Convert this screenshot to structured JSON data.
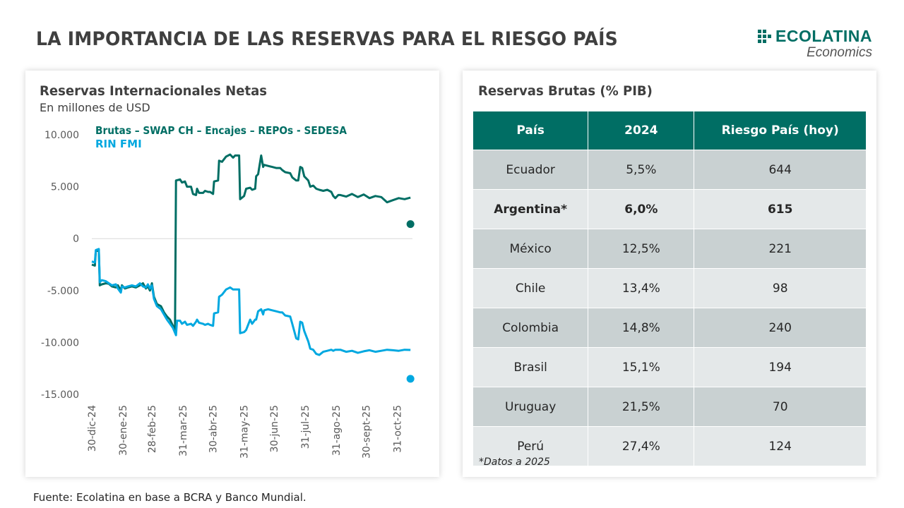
{
  "header": {
    "title": "LA IMPORTANCIA DE LAS RESERVAS PARA EL RIESGO PAÍS",
    "logo_name": "ECOLATINA",
    "logo_sub": "Economics"
  },
  "colors": {
    "brand": "#006e64",
    "series_brutas": "#006e64",
    "series_rin": "#00a8e0",
    "table_header": "#006e64",
    "row_dark": "#c9d1d2",
    "row_light": "#e4e8e9"
  },
  "chart_data": {
    "type": "line",
    "title": "Reservas Internacionales Netas",
    "subtitle": "En millones de USD",
    "xlabel": "",
    "ylabel": "",
    "ylim": [
      -15000,
      10000
    ],
    "yticks": [
      10000,
      5000,
      0,
      -5000,
      -10000,
      -15000
    ],
    "ytick_labels": [
      "10.000",
      "5.000",
      "0",
      "-5.000",
      "-10.000",
      "-15.000"
    ],
    "xticks": [
      "30-dic-24",
      "30-ene-25",
      "28-feb-25",
      "31-mar-25",
      "30-abr-25",
      "31-may-25",
      "30-jun-25",
      "31-jul-25",
      "31-ago-25",
      "30-sept-25",
      "31-oct-25"
    ],
    "xtick_days": [
      0,
      31,
      60,
      91,
      121,
      152,
      182,
      213,
      244,
      274,
      305
    ],
    "x_range_days": [
      0,
      320
    ],
    "zero_line": true,
    "grid": false,
    "legend_position": "top-left",
    "series": [
      {
        "name": "Brutas – SWAP CH – Encajes – REPOs - SEDESA",
        "color_key": "series_brutas",
        "points": [
          [
            0,
            -2500
          ],
          [
            3,
            -2600
          ],
          [
            4,
            -1200
          ],
          [
            7,
            -1100
          ],
          [
            8,
            -4500
          ],
          [
            10,
            -4400
          ],
          [
            14,
            -4300
          ],
          [
            17,
            -4350
          ],
          [
            20,
            -4600
          ],
          [
            24,
            -4700
          ],
          [
            26,
            -4500
          ],
          [
            29,
            -5000
          ],
          [
            30,
            -4500
          ],
          [
            33,
            -4800
          ],
          [
            36,
            -4700
          ],
          [
            40,
            -4600
          ],
          [
            44,
            -4700
          ],
          [
            48,
            -4500
          ],
          [
            51,
            -4300
          ],
          [
            54,
            -4800
          ],
          [
            56,
            -4600
          ],
          [
            58,
            -5000
          ],
          [
            60,
            -4300
          ],
          [
            62,
            -5600
          ],
          [
            65,
            -6300
          ],
          [
            69,
            -6500
          ],
          [
            72,
            -7100
          ],
          [
            75,
            -7500
          ],
          [
            78,
            -7800
          ],
          [
            81,
            -8400
          ],
          [
            83,
            -8900
          ],
          [
            84,
            5600
          ],
          [
            88,
            5700
          ],
          [
            90,
            5400
          ],
          [
            93,
            5500
          ],
          [
            95,
            5000
          ],
          [
            99,
            5000
          ],
          [
            101,
            4300
          ],
          [
            104,
            4200
          ],
          [
            105,
            4800
          ],
          [
            107,
            4400
          ],
          [
            111,
            4400
          ],
          [
            113,
            4600
          ],
          [
            116,
            4500
          ],
          [
            118,
            4500
          ],
          [
            121,
            4300
          ],
          [
            122,
            5500
          ],
          [
            126,
            5600
          ],
          [
            127,
            7500
          ],
          [
            130,
            7400
          ],
          [
            134,
            7900
          ],
          [
            138,
            8100
          ],
          [
            141,
            7800
          ],
          [
            143,
            8000
          ],
          [
            147,
            8000
          ],
          [
            148,
            3800
          ],
          [
            152,
            4100
          ],
          [
            154,
            4800
          ],
          [
            158,
            4900
          ],
          [
            160,
            4700
          ],
          [
            163,
            4800
          ],
          [
            164,
            6000
          ],
          [
            166,
            6200
          ],
          [
            169,
            8000
          ],
          [
            171,
            6900
          ],
          [
            172,
            7100
          ],
          [
            176,
            7000
          ],
          [
            180,
            6900
          ],
          [
            184,
            6800
          ],
          [
            188,
            6800
          ],
          [
            190,
            6600
          ],
          [
            193,
            6400
          ],
          [
            198,
            6300
          ],
          [
            200,
            5900
          ],
          [
            204,
            5600
          ],
          [
            206,
            5600
          ],
          [
            208,
            6900
          ],
          [
            210,
            6800
          ],
          [
            212,
            6000
          ],
          [
            216,
            5600
          ],
          [
            218,
            5000
          ],
          [
            221,
            5100
          ],
          [
            224,
            4800
          ],
          [
            227,
            4700
          ],
          [
            231,
            4600
          ],
          [
            235,
            4700
          ],
          [
            239,
            4500
          ],
          [
            241,
            4100
          ],
          [
            243,
            3900
          ],
          [
            246,
            4200
          ],
          [
            248,
            4200
          ],
          [
            300,
            4200
          ]
        ],
        "end_marker": [
          318,
          1400
        ]
      },
      {
        "name": "RIN FMI",
        "color_key": "series_rin",
        "points": [
          [
            0,
            -2200
          ],
          [
            3,
            -2300
          ],
          [
            4,
            -1100
          ],
          [
            7,
            -1000
          ],
          [
            8,
            -4200
          ],
          [
            10,
            -4000
          ],
          [
            14,
            -4100
          ],
          [
            17,
            -4300
          ],
          [
            20,
            -4500
          ],
          [
            24,
            -4400
          ],
          [
            26,
            -4800
          ],
          [
            29,
            -5200
          ],
          [
            30,
            -4600
          ],
          [
            33,
            -4700
          ],
          [
            36,
            -4600
          ],
          [
            40,
            -4500
          ],
          [
            44,
            -4600
          ],
          [
            48,
            -4300
          ],
          [
            51,
            -4600
          ],
          [
            54,
            -4700
          ],
          [
            56,
            -4400
          ],
          [
            58,
            -4800
          ],
          [
            60,
            -4500
          ],
          [
            62,
            -5800
          ],
          [
            65,
            -6500
          ],
          [
            69,
            -6800
          ],
          [
            72,
            -7300
          ],
          [
            75,
            -7800
          ],
          [
            78,
            -8200
          ],
          [
            81,
            -8600
          ],
          [
            84,
            -9300
          ],
          [
            85,
            -7900
          ],
          [
            88,
            -7900
          ],
          [
            90,
            -8200
          ],
          [
            93,
            -8000
          ],
          [
            95,
            -8300
          ],
          [
            99,
            -8200
          ],
          [
            101,
            -8400
          ],
          [
            104,
            -8000
          ],
          [
            105,
            -7800
          ],
          [
            107,
            -8100
          ],
          [
            111,
            -8200
          ],
          [
            113,
            -8300
          ],
          [
            116,
            -8200
          ],
          [
            118,
            -8300
          ],
          [
            121,
            -8400
          ],
          [
            122,
            -7200
          ],
          [
            126,
            -7100
          ],
          [
            127,
            -5600
          ],
          [
            130,
            -5400
          ],
          [
            134,
            -4900
          ],
          [
            138,
            -4700
          ],
          [
            141,
            -4900
          ],
          [
            143,
            -4900
          ],
          [
            147,
            -4900
          ],
          [
            148,
            -9100
          ],
          [
            152,
            -9000
          ],
          [
            154,
            -8800
          ],
          [
            158,
            -7800
          ],
          [
            160,
            -8200
          ],
          [
            163,
            -7800
          ],
          [
            164,
            -7800
          ],
          [
            166,
            -7000
          ],
          [
            169,
            -6800
          ],
          [
            171,
            -7300
          ],
          [
            172,
            -6900
          ],
          [
            176,
            -6800
          ],
          [
            180,
            -6900
          ],
          [
            184,
            -7000
          ],
          [
            188,
            -7100
          ],
          [
            190,
            -7100
          ],
          [
            193,
            -7400
          ],
          [
            198,
            -7500
          ],
          [
            200,
            -8200
          ],
          [
            204,
            -9600
          ],
          [
            206,
            -9700
          ],
          [
            208,
            -8000
          ],
          [
            210,
            -8100
          ],
          [
            212,
            -8900
          ],
          [
            216,
            -9900
          ],
          [
            218,
            -10600
          ],
          [
            221,
            -10700
          ],
          [
            224,
            -11100
          ],
          [
            227,
            -11200
          ],
          [
            231,
            -10900
          ],
          [
            235,
            -10800
          ],
          [
            239,
            -10700
          ],
          [
            241,
            -10800
          ],
          [
            243,
            -10700
          ],
          [
            246,
            -10700
          ],
          [
            248,
            -10700
          ],
          [
            300,
            -10700
          ]
        ],
        "end_marker": [
          318,
          -13500
        ]
      }
    ]
  },
  "table": {
    "title": "Reservas Brutas (% PIB)",
    "headers": [
      "País",
      "2024",
      "Riesgo País (hoy)"
    ],
    "rows": [
      {
        "country": "Ecuador",
        "pct": "5,5%",
        "risk": "644",
        "bold": false
      },
      {
        "country": "Argentina*",
        "pct": "6,0%",
        "risk": "615",
        "bold": true
      },
      {
        "country": "México",
        "pct": "12,5%",
        "risk": "221",
        "bold": false
      },
      {
        "country": "Chile",
        "pct": "13,4%",
        "risk": "98",
        "bold": false
      },
      {
        "country": "Colombia",
        "pct": "14,8%",
        "risk": "240",
        "bold": false
      },
      {
        "country": "Brasil",
        "pct": "15,1%",
        "risk": "194",
        "bold": false
      },
      {
        "country": "Uruguay",
        "pct": "21,5%",
        "risk": "70",
        "bold": false
      },
      {
        "country": "Perú",
        "pct": "27,4%",
        "risk": "124",
        "bold": false
      }
    ],
    "footnote": "*Datos a 2025"
  },
  "footer": {
    "source": "Fuente: Ecolatina en base a BCRA y Banco Mundial."
  }
}
